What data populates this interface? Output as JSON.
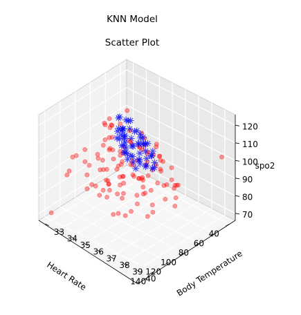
{
  "figure": {
    "suptitle": "KNN Model",
    "title": "Scatter Plot"
  },
  "chart_data": {
    "type": "scatter",
    "projection": "3d",
    "title": "Scatter Plot",
    "xlabel": "Heart Rate",
    "ylabel": "Body Temperature",
    "zlabel": "spo2",
    "xlim": [
      32,
      148
    ],
    "ylim": [
      32.5,
      40.8
    ],
    "zlim": [
      66,
      126
    ],
    "xticks": [
      40,
      60,
      80,
      100,
      120,
      140
    ],
    "yticks": [
      33,
      34,
      35,
      36,
      37,
      38,
      39,
      40
    ],
    "zticks": [
      70,
      80,
      90,
      100,
      110,
      120
    ],
    "grid": true,
    "series": [
      {
        "color": "#ff0000",
        "marker": "o",
        "points": [
          [
            60,
            33.0,
            98
          ],
          [
            66,
            33.3,
            101
          ],
          [
            70,
            33.0,
            102
          ],
          [
            72,
            33.5,
            107
          ],
          [
            78,
            33.9,
            105
          ],
          [
            84,
            34.4,
            103
          ],
          [
            90,
            34.8,
            99
          ],
          [
            96,
            35.2,
            97
          ],
          [
            102,
            35.8,
            95
          ],
          [
            108,
            36.4,
            90
          ],
          [
            114,
            36.9,
            86
          ],
          [
            120,
            37.5,
            80
          ],
          [
            80,
            33.5,
            94
          ],
          [
            86,
            34.3,
            96
          ],
          [
            92,
            34.7,
            100
          ],
          [
            95,
            34.5,
            105
          ],
          [
            88,
            34.1,
            110
          ],
          [
            82,
            34.9,
            112
          ],
          [
            76,
            35.3,
            108
          ],
          [
            72,
            36.2,
            106
          ],
          [
            70,
            37.2,
            99
          ],
          [
            74,
            37.5,
            94
          ],
          [
            69,
            36.9,
            103
          ],
          [
            68,
            35.8,
            97
          ],
          [
            75,
            34.5,
            93
          ],
          [
            92,
            33.8,
            91
          ],
          [
            98,
            34.3,
            88
          ],
          [
            104,
            34.9,
            92
          ],
          [
            110,
            35.5,
            96
          ],
          [
            100,
            36.1,
            100
          ],
          [
            94,
            36.9,
            102
          ],
          [
            86,
            37.1,
            98
          ],
          [
            80,
            37.9,
            96
          ],
          [
            78,
            38.6,
            100
          ],
          [
            84,
            38.1,
            104
          ],
          [
            90,
            37.5,
            108
          ],
          [
            98,
            38.3,
            103
          ],
          [
            105,
            37.2,
            98
          ],
          [
            112,
            36.9,
            94
          ],
          [
            118,
            36.1,
            92
          ],
          [
            110,
            37.8,
            90
          ],
          [
            100,
            38.3,
            92
          ],
          [
            95,
            39.0,
            96
          ],
          [
            90,
            39.3,
            99
          ],
          [
            85,
            39.4,
            95
          ],
          [
            80,
            38.9,
            90
          ],
          [
            74,
            38.0,
            87
          ],
          [
            82,
            36.6,
            88
          ],
          [
            90,
            35.6,
            87
          ],
          [
            100,
            35.0,
            85
          ],
          [
            108,
            35.6,
            84
          ],
          [
            116,
            34.7,
            86
          ],
          [
            120,
            35.8,
            88
          ],
          [
            122,
            37.0,
            91
          ],
          [
            126,
            37.7,
            95
          ],
          [
            128,
            38.4,
            88
          ],
          [
            120,
            39.2,
            86
          ],
          [
            112,
            39.1,
            90
          ],
          [
            108,
            38.9,
            84
          ],
          [
            102,
            39.5,
            92
          ],
          [
            96,
            39.9,
            88
          ],
          [
            88,
            39.5,
            89
          ],
          [
            78,
            39.1,
            92
          ],
          [
            72,
            38.5,
            88
          ],
          [
            76,
            37.1,
            101
          ],
          [
            81,
            36.3,
            104
          ],
          [
            88,
            35.9,
            108
          ],
          [
            96,
            36.6,
            111
          ],
          [
            104,
            36.4,
            107
          ],
          [
            112,
            35.3,
            101
          ],
          [
            118,
            34.3,
            98
          ],
          [
            124,
            34.8,
            94
          ],
          [
            130,
            36.1,
            89
          ],
          [
            134,
            36.9,
            92
          ],
          [
            136,
            37.5,
            85
          ],
          [
            138,
            38.0,
            88
          ],
          [
            132,
            39.1,
            96
          ],
          [
            125,
            39.3,
            101
          ],
          [
            118,
            38.4,
            104
          ],
          [
            126,
            38.9,
            108
          ],
          [
            120,
            38.1,
            111
          ],
          [
            110,
            38.6,
            112
          ],
          [
            104,
            37.7,
            115
          ],
          [
            96,
            37.6,
            114
          ],
          [
            88,
            36.9,
            116
          ],
          [
            84,
            37.8,
            112
          ],
          [
            92,
            38.5,
            110
          ],
          [
            86,
            34.3,
            103
          ],
          [
            94,
            35.6,
            100
          ],
          [
            98,
            34.1,
            96
          ],
          [
            106,
            33.6,
            99
          ],
          [
            114,
            33.4,
            97
          ],
          [
            124,
            33.7,
            100
          ],
          [
            132,
            33.9,
            95
          ],
          [
            140,
            34.2,
            96
          ],
          [
            136,
            35.5,
            92
          ],
          [
            128,
            35.2,
            102
          ],
          [
            142,
            36.5,
            99
          ],
          [
            140,
            37.4,
            103
          ],
          [
            100,
            37.0,
            95
          ],
          [
            85,
            36.0,
            96
          ],
          [
            95,
            37.4,
            93
          ],
          [
            105,
            36.2,
            93
          ],
          [
            115,
            37.0,
            99
          ],
          [
            88,
            38.0,
            102
          ],
          [
            92,
            36.3,
            97
          ],
          [
            97,
            37.9,
            98
          ],
          [
            110,
            36.6,
            103
          ],
          [
            82,
            35.2,
            100
          ],
          [
            76,
            36.6,
            100
          ],
          [
            100,
            38.8,
            98
          ],
          [
            93,
            35.4,
            93
          ],
          [
            123,
            36.2,
            96
          ],
          [
            107,
            38.1,
            95
          ],
          [
            117,
            38.7,
            96
          ],
          [
            86,
            38.4,
            105
          ],
          [
            90,
            37.0,
            91
          ],
          [
            70,
            35.0,
            99
          ],
          [
            140,
            33.0,
            70
          ],
          [
            40,
            33.0,
            101
          ],
          [
            36,
            40.0,
            100
          ]
        ]
      },
      {
        "color": "#0000ff",
        "marker": "*",
        "points": [
          [
            72,
            34.5,
            105
          ],
          [
            74,
            34.8,
            103
          ],
          [
            76,
            34.7,
            106
          ],
          [
            78,
            34.9,
            108
          ],
          [
            80,
            35.1,
            104
          ],
          [
            82,
            35.2,
            106
          ],
          [
            84,
            35.3,
            102
          ],
          [
            86,
            35.5,
            105
          ],
          [
            88,
            35.7,
            103
          ],
          [
            90,
            35.9,
            101
          ],
          [
            76,
            35.4,
            104
          ],
          [
            80,
            35.7,
            102
          ],
          [
            84,
            36.0,
            104
          ],
          [
            88,
            36.2,
            100
          ],
          [
            92,
            36.3,
            102
          ],
          [
            74,
            35.8,
            102
          ],
          [
            78,
            36.1,
            104
          ],
          [
            82,
            36.4,
            101
          ],
          [
            86,
            36.6,
            99
          ],
          [
            90,
            36.8,
            101
          ],
          [
            72,
            36.1,
            103
          ],
          [
            76,
            36.5,
            101
          ],
          [
            80,
            36.8,
            99
          ],
          [
            84,
            37.0,
            97
          ],
          [
            70,
            35.3,
            106
          ],
          [
            72,
            35.6,
            108
          ],
          [
            74,
            36.0,
            106
          ],
          [
            76,
            36.3,
            108
          ],
          [
            78,
            36.6,
            106
          ],
          [
            80,
            37.2,
            102
          ],
          [
            68,
            34.7,
            109
          ],
          [
            70,
            35.0,
            111
          ],
          [
            72,
            34.2,
            110
          ],
          [
            74,
            34.4,
            112
          ],
          [
            76,
            35.0,
            113
          ],
          [
            78,
            35.4,
            110
          ],
          [
            80,
            35.0,
            109
          ],
          [
            82,
            34.7,
            107
          ],
          [
            84,
            34.9,
            110
          ],
          [
            86,
            35.2,
            108
          ],
          [
            88,
            35.0,
            106
          ],
          [
            90,
            35.3,
            107
          ],
          [
            92,
            35.6,
            105
          ],
          [
            94,
            35.9,
            103
          ],
          [
            96,
            36.1,
            104
          ],
          [
            94,
            36.6,
            100
          ],
          [
            92,
            37.0,
            100
          ],
          [
            88,
            37.2,
            98
          ],
          [
            96,
            36.9,
            98
          ],
          [
            98,
            36.4,
            102
          ],
          [
            66,
            35.5,
            104
          ],
          [
            70,
            36.0,
            101
          ],
          [
            74,
            36.8,
            99
          ],
          [
            78,
            37.3,
            98
          ],
          [
            82,
            37.5,
            97
          ],
          [
            86,
            37.6,
            98
          ],
          [
            70,
            36.7,
            100
          ],
          [
            68,
            36.2,
            102
          ]
        ]
      }
    ]
  }
}
